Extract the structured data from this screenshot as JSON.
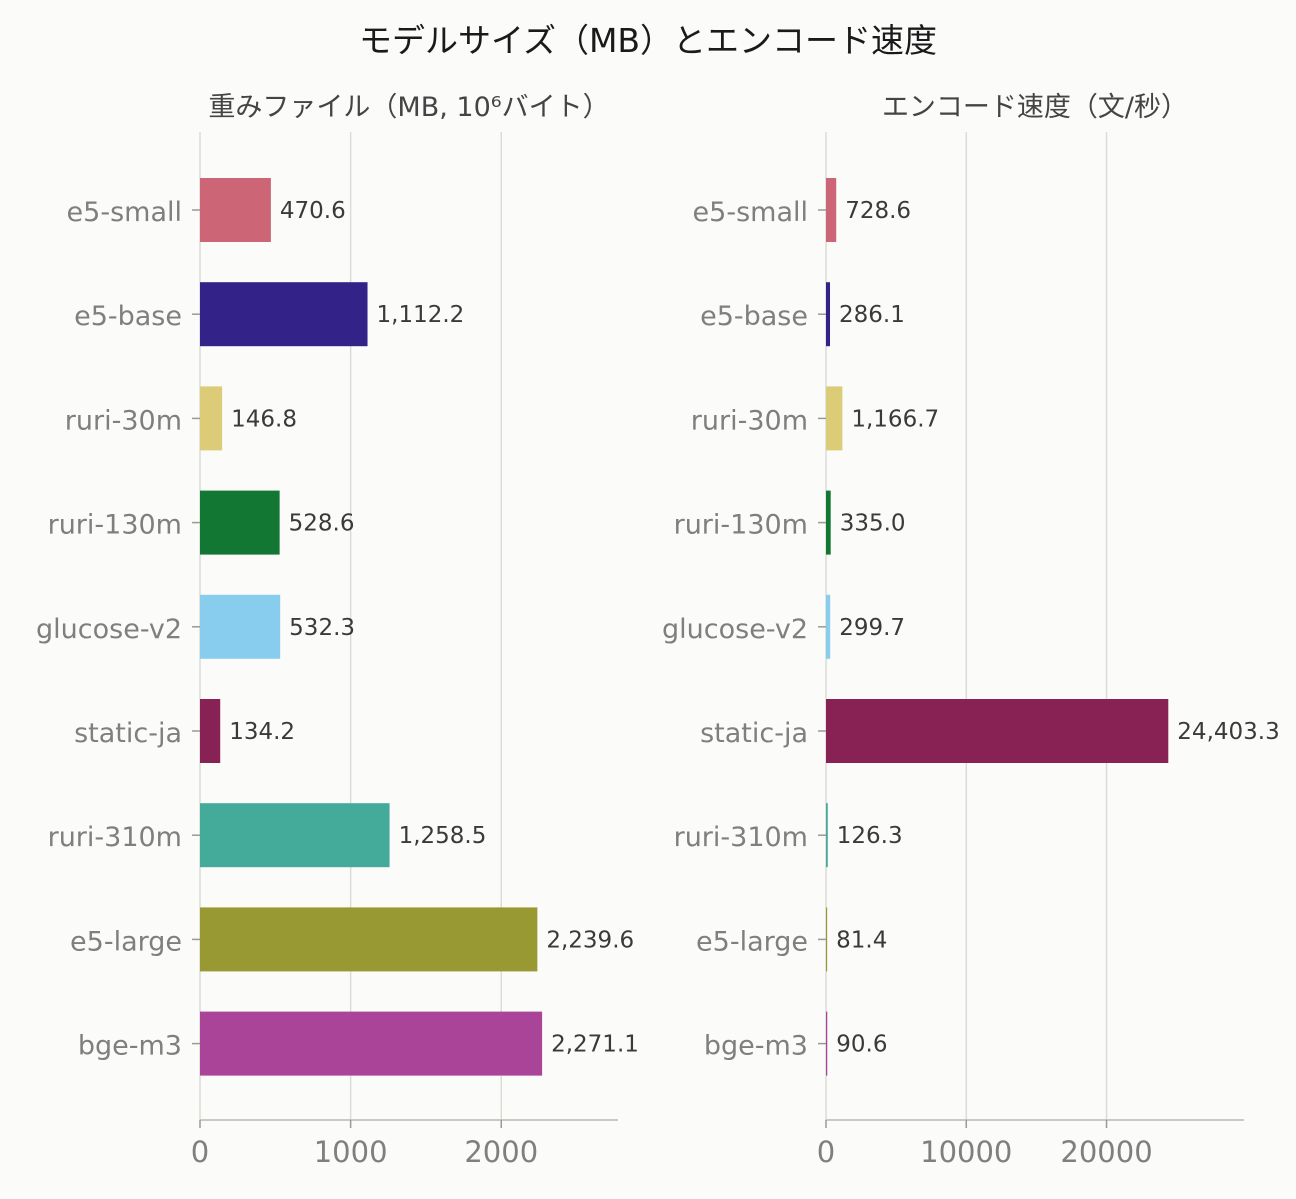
{
  "figure": {
    "title": "モデルサイズ（MB）とエンコード速度"
  },
  "chart_data": [
    {
      "type": "bar",
      "orientation": "horizontal",
      "title": "重みファイル（MB, 10⁶バイト）",
      "xlabel": "",
      "ylabel": "",
      "categories": [
        "e5-small",
        "e5-base",
        "ruri-30m",
        "ruri-130m",
        "glucose-v2",
        "static-ja",
        "ruri-310m",
        "e5-large",
        "bge-m3"
      ],
      "values": [
        470.6,
        1112.2,
        146.8,
        528.6,
        532.3,
        134.2,
        1258.5,
        2239.6,
        2271.1
      ],
      "value_labels": [
        "470.6",
        "1,112.2",
        "146.8",
        "528.6",
        "532.3",
        "134.2",
        "1,258.5",
        "2,239.6",
        "2,271.1"
      ],
      "colors": [
        "#cc6677",
        "#332288",
        "#ddcc77",
        "#117733",
        "#88ccee",
        "#882255",
        "#44aa99",
        "#999933",
        "#aa4499"
      ],
      "xlim": [
        0,
        2775
      ],
      "xticks": [
        0,
        1000,
        2000
      ],
      "xtick_labels": [
        "0",
        "1000",
        "2000"
      ],
      "grid": "vertical"
    },
    {
      "type": "bar",
      "orientation": "horizontal",
      "title": "エンコード速度（文/秒）",
      "xlabel": "",
      "ylabel": "",
      "categories": [
        "e5-small",
        "e5-base",
        "ruri-30m",
        "ruri-130m",
        "glucose-v2",
        "static-ja",
        "ruri-310m",
        "e5-large",
        "bge-m3"
      ],
      "values": [
        728.6,
        286.1,
        1166.7,
        335.0,
        299.7,
        24403.3,
        126.3,
        81.4,
        90.6
      ],
      "value_labels": [
        "728.6",
        "286.1",
        "1,166.7",
        "335.0",
        "299.7",
        "24,403.3",
        "126.3",
        "81.4",
        "90.6"
      ],
      "colors": [
        "#cc6677",
        "#332288",
        "#ddcc77",
        "#117733",
        "#88ccee",
        "#882255",
        "#44aa99",
        "#999933",
        "#aa4499"
      ],
      "xlim": [
        0,
        29800
      ],
      "xticks": [
        0,
        10000,
        20000
      ],
      "xtick_labels": [
        "0",
        "10000",
        "20000"
      ],
      "grid": "vertical"
    }
  ]
}
